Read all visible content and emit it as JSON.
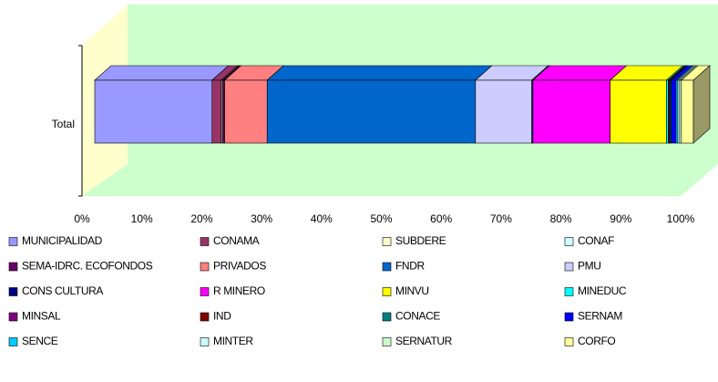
{
  "chart_data": {
    "type": "bar",
    "orientation": "horizontal",
    "stacked": true,
    "percent": true,
    "three_d": true,
    "categories": [
      "Total"
    ],
    "series": [
      {
        "name": "MUNICIPALIDAD",
        "color": "#9999ff",
        "values": [
          19.6
        ]
      },
      {
        "name": "CONAMA",
        "color": "#993366",
        "values": [
          1.5
        ]
      },
      {
        "name": "SUBDERE",
        "color": "#ffffcc",
        "values": [
          0.2
        ]
      },
      {
        "name": "CONAF",
        "color": "#ccffff",
        "values": [
          0.1
        ]
      },
      {
        "name": "SEMA-IDRC. ECOFONDOS",
        "color": "#660066",
        "values": [
          0.3
        ]
      },
      {
        "name": "PRIVADOS",
        "color": "#ff8080",
        "values": [
          7.1
        ]
      },
      {
        "name": "FNDR",
        "color": "#0066cc",
        "values": [
          34.8
        ]
      },
      {
        "name": "PMU",
        "color": "#ccccff",
        "values": [
          9.4
        ]
      },
      {
        "name": "CONS CULTURA",
        "color": "#000080",
        "values": [
          0.2
        ]
      },
      {
        "name": "R MINERO",
        "color": "#ff00ff",
        "values": [
          12.9
        ]
      },
      {
        "name": "MINVU",
        "color": "#ffff00",
        "values": [
          9.4
        ]
      },
      {
        "name": "MINEDUC",
        "color": "#00ffff",
        "values": [
          0.3
        ]
      },
      {
        "name": "MINSAL",
        "color": "#800080",
        "values": [
          0.2
        ]
      },
      {
        "name": "IND",
        "color": "#800000",
        "values": [
          0.1
        ]
      },
      {
        "name": "CONACE",
        "color": "#008080",
        "values": [
          0.2
        ]
      },
      {
        "name": "SERNAM",
        "color": "#0000ff",
        "values": [
          0.8
        ]
      },
      {
        "name": "SENCE",
        "color": "#00ccff",
        "values": [
          0.3
        ]
      },
      {
        "name": "MINTER",
        "color": "#ccffff",
        "values": [
          0.3
        ]
      },
      {
        "name": "SERNATUR",
        "color": "#ccffcc",
        "values": [
          0.3
        ]
      },
      {
        "name": "CORFO",
        "color": "#ffff99",
        "values": [
          2.0
        ]
      }
    ],
    "xlim": [
      0,
      100
    ],
    "xticks": [
      {
        "value": 0,
        "label": "0%"
      },
      {
        "value": 10,
        "label": "10%"
      },
      {
        "value": 20,
        "label": "20%"
      },
      {
        "value": 30,
        "label": "30%"
      },
      {
        "value": 40,
        "label": "40%"
      },
      {
        "value": 50,
        "label": "50%"
      },
      {
        "value": 60,
        "label": "60%"
      },
      {
        "value": 70,
        "label": "70%"
      },
      {
        "value": 80,
        "label": "80%"
      },
      {
        "value": 90,
        "label": "90%"
      },
      {
        "value": 100,
        "label": "100%"
      }
    ],
    "legend": "bottom"
  }
}
